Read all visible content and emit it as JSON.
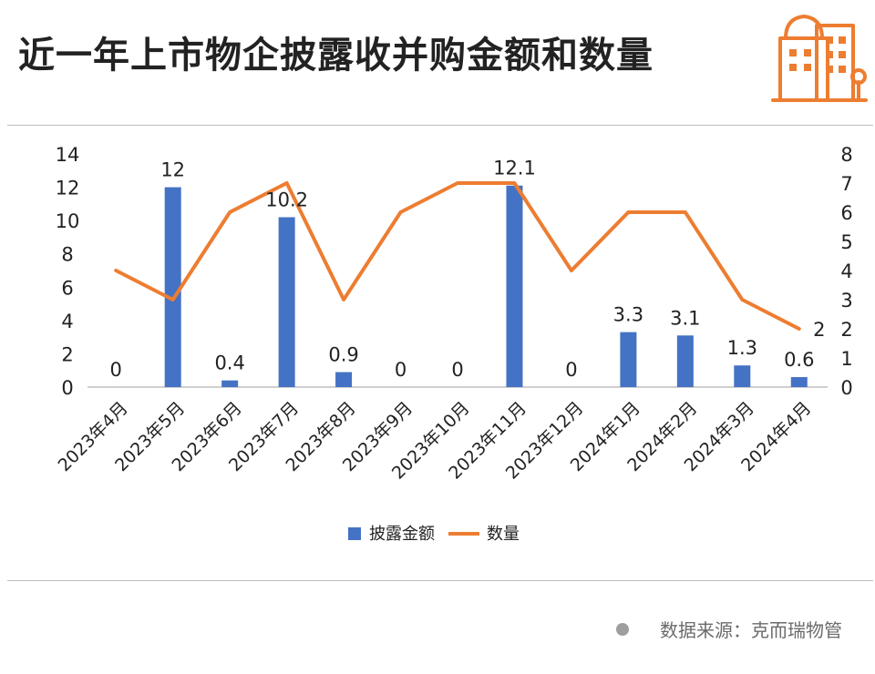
{
  "title": "近一年上市物企披露收并购金额和数量",
  "source": "数据来源：克而瑞物管",
  "colors": {
    "bar": "#4472C4",
    "line": "#ED7D31",
    "logo": "#ED7D31",
    "axis": "#bfbfbf"
  },
  "chart_data": {
    "type": "bar+line",
    "categories": [
      "2023年4月",
      "2023年5月",
      "2023年6月",
      "2023年7月",
      "2023年8月",
      "2023年9月",
      "2023年10月",
      "2023年11月",
      "2023年12月",
      "2024年1月",
      "2024年2月",
      "2024年3月",
      "2024年4月"
    ],
    "series": [
      {
        "name": "披露金额",
        "type": "bar",
        "axis": "left",
        "values": [
          0,
          12,
          0.4,
          10.2,
          0.9,
          0,
          0,
          12.1,
          0,
          3.3,
          3.1,
          1.3,
          0.6
        ],
        "labels": [
          "0",
          "12",
          "0.4",
          "10.2",
          "0.9",
          "0",
          "0",
          "12.1",
          "0",
          "3.3",
          "3.1",
          "1.3",
          "0.6"
        ]
      },
      {
        "name": "数量",
        "type": "line",
        "axis": "right",
        "values": [
          4,
          3,
          6,
          7,
          3,
          6,
          7,
          7,
          4,
          6,
          6,
          3,
          2
        ],
        "last_label": "2"
      }
    ],
    "y_left": {
      "min": 0,
      "max": 14,
      "ticks": [
        "0",
        "2",
        "4",
        "6",
        "8",
        "10",
        "12",
        "14"
      ]
    },
    "y_right": {
      "min": 0,
      "max": 8,
      "ticks": [
        "0",
        "1",
        "2",
        "3",
        "4",
        "5",
        "6",
        "7",
        "8"
      ]
    },
    "legend": {
      "position": "bottom",
      "items": [
        "披露金额",
        "数量"
      ]
    },
    "grid": false
  }
}
